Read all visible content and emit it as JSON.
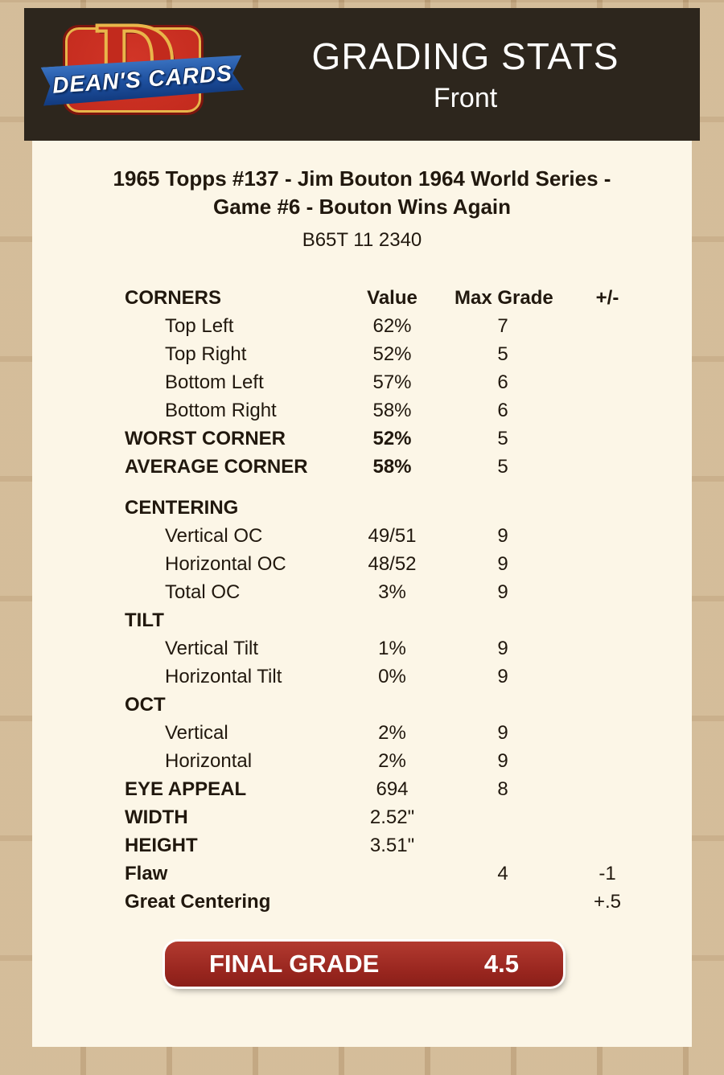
{
  "header": {
    "logo": {
      "letter": "D",
      "brand": "DEAN'S CARDS"
    },
    "title": "GRADING STATS",
    "subtitle": "Front"
  },
  "card": {
    "title_line1": "1965 Topps #137  -  Jim Bouton 1964 World Series -",
    "title_line2": "Game #6 - Bouton Wins Again",
    "serial": "B65T 11 2340"
  },
  "table": {
    "headers": {
      "col1": "CORNERS",
      "value": "Value",
      "max_grade": "Max Grade",
      "plus_minus": "+/-"
    },
    "rows": [
      {
        "label": "Top Left",
        "indent": true,
        "value": "62%",
        "max": "7"
      },
      {
        "label": "Top Right",
        "indent": true,
        "value": "52%",
        "max": "5"
      },
      {
        "label": "Bottom Left",
        "indent": true,
        "value": "57%",
        "max": "6"
      },
      {
        "label": "Bottom Right",
        "indent": true,
        "value": "58%",
        "max": "6"
      },
      {
        "label": "WORST CORNER",
        "bold": true,
        "value": "52%",
        "value_bold": true,
        "max": "5"
      },
      {
        "label": "AVERAGE CORNER",
        "bold": true,
        "value": "58%",
        "value_bold": true,
        "max": "5"
      },
      {
        "label": "CENTERING",
        "bold": true,
        "gap_before": true
      },
      {
        "label": "Vertical OC",
        "indent": true,
        "value": "49/51",
        "max": "9"
      },
      {
        "label": "Horizontal OC",
        "indent": true,
        "value": "48/52",
        "max": "9"
      },
      {
        "label": "Total OC",
        "indent": true,
        "value": "3%",
        "max": "9"
      },
      {
        "label": "TILT",
        "bold": true
      },
      {
        "label": "Vertical Tilt",
        "indent": true,
        "value": "1%",
        "max": "9"
      },
      {
        "label": "Horizontal Tilt",
        "indent": true,
        "value": "0%",
        "max": "9"
      },
      {
        "label": "OCT",
        "bold": true
      },
      {
        "label": "Vertical",
        "indent": true,
        "value": "2%",
        "max": "9"
      },
      {
        "label": "Horizontal",
        "indent": true,
        "value": "2%",
        "max": "9"
      },
      {
        "label": "EYE APPEAL",
        "bold": true,
        "value": "694",
        "max": "8"
      },
      {
        "label": "WIDTH",
        "bold": true,
        "value": "2.52\""
      },
      {
        "label": "HEIGHT",
        "bold": true,
        "value": "3.51\""
      },
      {
        "label": "Flaw",
        "bold": true,
        "max": "4",
        "pm": "-1"
      },
      {
        "label": "Great Centering",
        "bold": true,
        "pm": "+.5"
      }
    ]
  },
  "final": {
    "label": "FINAL GRADE",
    "value": "4.5"
  },
  "colors": {
    "page_bg": "#c9ad86",
    "header_bg": "#2d261d",
    "panel_bg": "#fcf6e7",
    "final_grade_red": "#97251e",
    "logo_red": "#c22a1d",
    "logo_blue": "#1d4f9e"
  }
}
